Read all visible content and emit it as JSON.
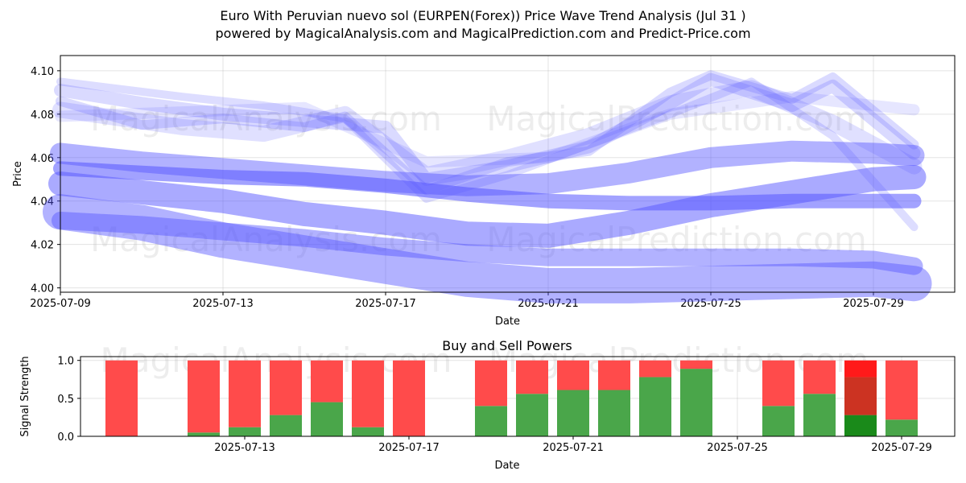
{
  "header": {
    "title_line1": "Euro With Peruvian nuevo sol (EURPEN(Forex)) Price Wave Trend Analysis (Jul 31 )",
    "title_line2": "powered by MagicalAnalysis.com and MagicalPrediction.com and Predict-Price.com"
  },
  "watermarks": [
    "MagicalAnalysis.com",
    "MagicalPrediction.com"
  ],
  "colors": {
    "wave": "#5555ff",
    "sell": "#ff4b4b",
    "buy": "#4aa64a",
    "buy_strong": "#1a8a1a",
    "sell_strong": "#ff1a1a",
    "mixed": "#cc3322"
  },
  "chart_data": [
    {
      "type": "line",
      "title": "",
      "xlabel": "Date",
      "ylabel": "Price",
      "xlim": [
        "2025-07-09",
        "2025-07-31"
      ],
      "ylim": [
        3.998,
        4.107
      ],
      "x_ticks": [
        "2025-07-09",
        "2025-07-13",
        "2025-07-17",
        "2025-07-21",
        "2025-07-25",
        "2025-07-29"
      ],
      "y_ticks": [
        "4.00",
        "4.02",
        "4.04",
        "4.06",
        "4.08",
        "4.10"
      ],
      "grid": true,
      "series": [
        {
          "x": [
            "2025-07-09",
            "2025-07-11",
            "2025-07-13",
            "2025-07-15",
            "2025-07-17",
            "2025-07-19",
            "2025-07-21",
            "2025-07-23",
            "2025-07-25",
            "2025-07-27",
            "2025-07-29",
            "2025-07-30"
          ],
          "values": [
            4.031,
            4.029,
            4.026,
            4.023,
            4.019,
            4.016,
            4.014,
            4.014,
            4.014,
            4.014,
            4.013,
            4.01
          ]
        },
        {
          "x": [
            "2025-07-09",
            "2025-07-11",
            "2025-07-13",
            "2025-07-15",
            "2025-07-17",
            "2025-07-19",
            "2025-07-21",
            "2025-07-23",
            "2025-07-25",
            "2025-07-27",
            "2025-07-29",
            "2025-07-30"
          ],
          "values": [
            4.048,
            4.044,
            4.04,
            4.034,
            4.03,
            4.025,
            4.024,
            4.03,
            4.038,
            4.044,
            4.05,
            4.051
          ]
        },
        {
          "x": [
            "2025-07-09",
            "2025-07-11",
            "2025-07-13",
            "2025-07-15",
            "2025-07-17",
            "2025-07-19",
            "2025-07-21",
            "2025-07-23",
            "2025-07-25",
            "2025-07-27",
            "2025-07-29",
            "2025-07-30"
          ],
          "values": [
            4.055,
            4.053,
            4.051,
            4.05,
            4.047,
            4.043,
            4.04,
            4.039,
            4.039,
            4.04,
            4.04,
            4.04
          ]
        },
        {
          "x": [
            "2025-07-09",
            "2025-07-11",
            "2025-07-13",
            "2025-07-15",
            "2025-07-17",
            "2025-07-19",
            "2025-07-21",
            "2025-07-23",
            "2025-07-25",
            "2025-07-27",
            "2025-07-29",
            "2025-07-30"
          ],
          "values": [
            4.062,
            4.058,
            4.055,
            4.052,
            4.049,
            4.047,
            4.048,
            4.053,
            4.06,
            4.063,
            4.062,
            4.061
          ]
        },
        {
          "x": [
            "2025-07-09",
            "2025-07-11",
            "2025-07-13",
            "2025-07-15",
            "2025-07-17",
            "2025-07-19",
            "2025-07-21",
            "2025-07-23",
            "2025-07-25",
            "2025-07-27",
            "2025-07-29",
            "2025-07-30"
          ],
          "values": [
            4.035,
            4.03,
            4.022,
            4.016,
            4.01,
            4.004,
            4.001,
            4.001,
            4.002,
            4.003,
            4.004,
            4.002
          ]
        },
        {
          "x": [
            "2025-07-09",
            "2025-07-11",
            "2025-07-13",
            "2025-07-15",
            "2025-07-17",
            "2025-07-18",
            "2025-07-20",
            "2025-07-22",
            "2025-07-24",
            "2025-07-25",
            "2025-07-27",
            "2025-07-28",
            "2025-07-30"
          ],
          "values": [
            4.091,
            4.085,
            4.08,
            4.077,
            4.074,
            4.05,
            4.056,
            4.065,
            4.085,
            4.096,
            4.084,
            4.093,
            4.062
          ]
        },
        {
          "x": [
            "2025-07-09",
            "2025-07-11",
            "2025-07-13",
            "2025-07-15",
            "2025-07-16",
            "2025-07-18",
            "2025-07-20",
            "2025-07-22",
            "2025-07-24",
            "2025-07-25",
            "2025-07-27",
            "2025-07-28",
            "2025-07-30"
          ],
          "values": [
            4.086,
            4.075,
            4.078,
            4.074,
            4.079,
            4.045,
            4.058,
            4.063,
            4.09,
            4.098,
            4.087,
            4.097,
            4.066
          ]
        },
        {
          "x": [
            "2025-07-09",
            "2025-07-12",
            "2025-07-14",
            "2025-07-16",
            "2025-07-18",
            "2025-07-20",
            "2025-07-22",
            "2025-07-24",
            "2025-07-26",
            "2025-07-28",
            "2025-07-30"
          ],
          "values": [
            4.082,
            4.074,
            4.071,
            4.08,
            4.052,
            4.06,
            4.07,
            4.085,
            4.092,
            4.076,
            4.056
          ]
        },
        {
          "x": [
            "2025-07-09",
            "2025-07-12",
            "2025-07-14",
            "2025-07-16",
            "2025-07-18",
            "2025-07-20",
            "2025-07-22",
            "2025-07-24",
            "2025-07-26",
            "2025-07-28",
            "2025-07-30"
          ],
          "values": [
            4.095,
            4.088,
            4.084,
            4.078,
            4.041,
            4.052,
            4.066,
            4.08,
            4.095,
            4.07,
            4.028
          ]
        },
        {
          "x": [
            "2025-07-09",
            "2025-07-12",
            "2025-07-15",
            "2025-07-18",
            "2025-07-21",
            "2025-07-24",
            "2025-07-27",
            "2025-07-30"
          ],
          "values": [
            4.079,
            4.081,
            4.083,
            4.058,
            4.06,
            4.08,
            4.088,
            4.082
          ]
        }
      ]
    },
    {
      "type": "bar",
      "title": "Buy and Sell Powers",
      "xlabel": "Date",
      "ylabel": "Signal Strength",
      "ylim": [
        0,
        1.05
      ],
      "y_ticks": [
        "0.0",
        "0.5",
        "1.0"
      ],
      "x_ticks": [
        "2025-07-13",
        "2025-07-17",
        "2025-07-21",
        "2025-07-25",
        "2025-07-29"
      ],
      "categories": [
        "2025-07-10",
        "2025-07-12",
        "2025-07-13",
        "2025-07-14",
        "2025-07-15",
        "2025-07-16",
        "2025-07-17",
        "2025-07-19",
        "2025-07-20",
        "2025-07-21",
        "2025-07-22",
        "2025-07-23",
        "2025-07-24",
        "2025-07-26",
        "2025-07-27",
        "2025-07-28",
        "2025-07-29"
      ],
      "series": [
        {
          "values": [
            0.0,
            0.05,
            0.12,
            0.28,
            0.45,
            0.12,
            0.0,
            0.4,
            0.56,
            0.61,
            0.61,
            0.78,
            0.89,
            0.4,
            0.56,
            0.28,
            0.22
          ]
        },
        {
          "values": [
            1.0,
            0.95,
            0.88,
            0.72,
            0.55,
            0.88,
            1.0,
            0.6,
            0.44,
            0.39,
            0.39,
            0.22,
            0.11,
            0.6,
            0.44,
            0.72,
            0.78
          ]
        }
      ]
    }
  ]
}
